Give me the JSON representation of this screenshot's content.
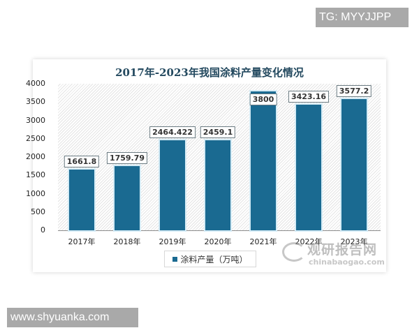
{
  "overlays": {
    "tg_tag": "TG: MYYJJPP",
    "site_tag": "www.shyuanka.com"
  },
  "chart": {
    "title": "2017年-2023年我国涂料产量变化情况",
    "y_ticks": [
      "4000",
      "3500",
      "3000",
      "2500",
      "2000",
      "1500",
      "1000",
      "500",
      "0"
    ],
    "categories": [
      "2017年",
      "2018年",
      "2019年",
      "2020年",
      "2021年",
      "2022年",
      "2023年"
    ],
    "value_labels": [
      "1661.8",
      "1759.79",
      "2464.422",
      "2459.1",
      "3800",
      "3423.16",
      "3577.2"
    ],
    "legend": "涂料产量（万吨）",
    "bar_color": "#1a6a91"
  },
  "watermark": {
    "cn": "观研报告网",
    "en": "chinabaogao.com"
  },
  "chart_data": {
    "type": "bar",
    "title": "2017年-2023年我国涂料产量变化情况",
    "categories": [
      "2017年",
      "2018年",
      "2019年",
      "2020年",
      "2021年",
      "2022年",
      "2023年"
    ],
    "series": [
      {
        "name": "涂料产量（万吨）",
        "values": [
          1661.8,
          1759.79,
          2464.422,
          2459.1,
          3800,
          3423.16,
          3577.2
        ]
      }
    ],
    "xlabel": "",
    "ylabel": "",
    "ylim": [
      0,
      4000
    ],
    "yticks": [
      0,
      500,
      1000,
      1500,
      2000,
      2500,
      3000,
      3500,
      4000
    ],
    "grid": false,
    "legend_position": "bottom",
    "data_labels": true
  }
}
